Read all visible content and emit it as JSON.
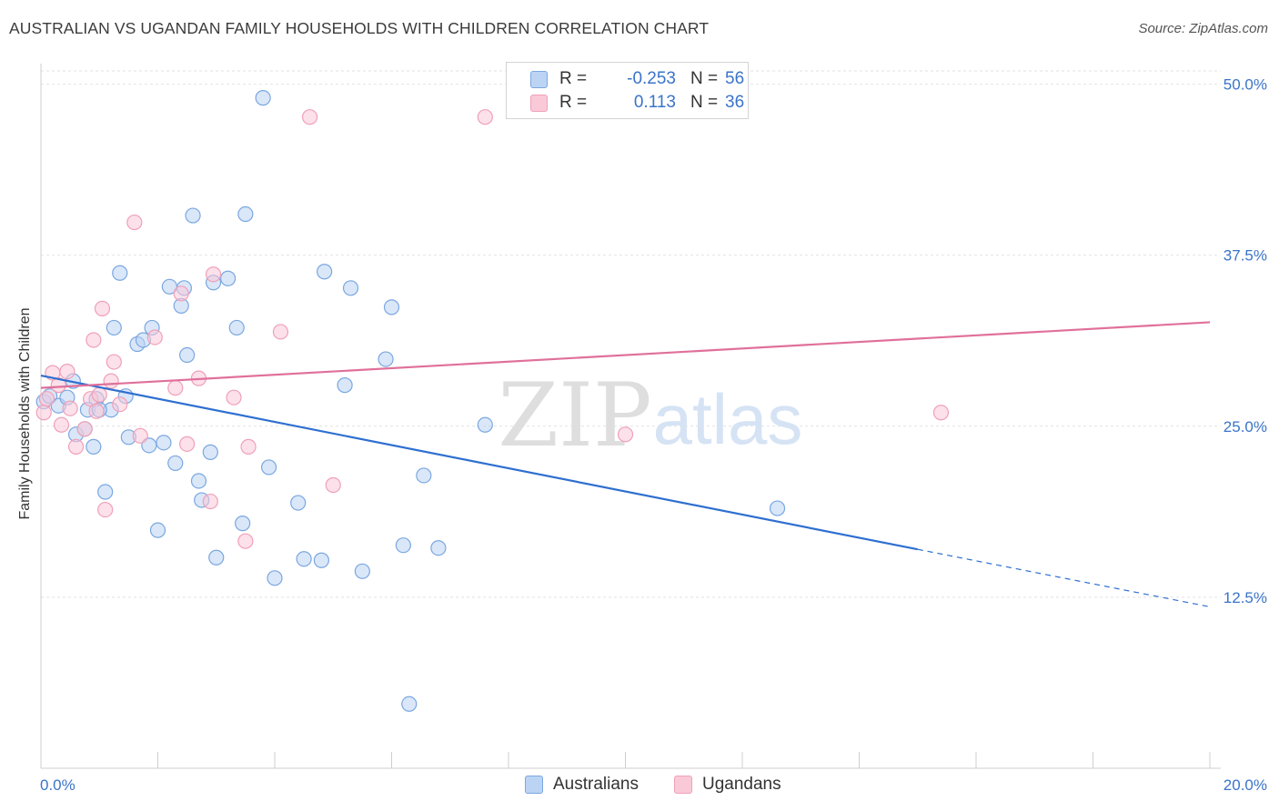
{
  "title": "AUSTRALIAN VS UGANDAN FAMILY HOUSEHOLDS WITH CHILDREN CORRELATION CHART",
  "source": "Source: ZipAtlas.com",
  "watermark": {
    "part1": "ZIP",
    "part2": "atlas"
  },
  "legend": {
    "r_label": "R =",
    "n_label": "N =",
    "rows": [
      {
        "series": "Australians",
        "r": "-0.253",
        "n": "56",
        "color": "#7aa7e0"
      },
      {
        "series": "Ugandans",
        "r": "0.113",
        "n": "36",
        "color": "#f0a0b8"
      }
    ]
  },
  "bottom_legend": [
    "Australians",
    "Ugandans"
  ],
  "chart_data": {
    "type": "scatter",
    "title": "AUSTRALIAN VS UGANDAN FAMILY HOUSEHOLDS WITH CHILDREN CORRELATION CHART",
    "xlabel": "",
    "ylabel": "Family Households with Children",
    "xlim": [
      0,
      20
    ],
    "ylim": [
      0,
      51.5
    ],
    "x_ticks_labels": [
      "0.0%",
      "20.0%"
    ],
    "y_ticks": [
      12.5,
      25.0,
      37.5,
      50.0
    ],
    "y_ticks_labels": [
      "12.5%",
      "25.0%",
      "37.5%",
      "50.0%"
    ],
    "grid": true,
    "series": [
      {
        "name": "Australians",
        "color": "#7aa7e0",
        "fill": "#bcd4f4",
        "trend": {
          "x0": 0.0,
          "y0": 28.7,
          "x1": 15.0,
          "y1": 16.0,
          "dash_to_x": 20.0,
          "dash_to_y": 11.8,
          "color": "#2e6fd0"
        },
        "points": [
          [
            0.05,
            26.8
          ],
          [
            0.15,
            27.2
          ],
          [
            0.3,
            26.5
          ],
          [
            0.45,
            27.1
          ],
          [
            0.55,
            28.3
          ],
          [
            0.6,
            24.4
          ],
          [
            0.75,
            24.8
          ],
          [
            0.8,
            26.2
          ],
          [
            0.9,
            23.5
          ],
          [
            0.95,
            27.0
          ],
          [
            1.1,
            20.2
          ],
          [
            1.2,
            26.2
          ],
          [
            1.25,
            32.2
          ],
          [
            1.35,
            36.2
          ],
          [
            1.45,
            27.2
          ],
          [
            1.5,
            24.2
          ],
          [
            1.65,
            31.0
          ],
          [
            1.75,
            31.3
          ],
          [
            1.85,
            23.6
          ],
          [
            1.9,
            32.2
          ],
          [
            2.0,
            17.4
          ],
          [
            2.1,
            23.8
          ],
          [
            2.2,
            35.2
          ],
          [
            2.3,
            22.3
          ],
          [
            2.4,
            33.8
          ],
          [
            2.45,
            35.1
          ],
          [
            2.5,
            30.2
          ],
          [
            2.6,
            40.4
          ],
          [
            2.7,
            21.0
          ],
          [
            2.75,
            19.6
          ],
          [
            2.9,
            23.1
          ],
          [
            2.95,
            35.5
          ],
          [
            3.0,
            15.4
          ],
          [
            3.2,
            35.8
          ],
          [
            3.35,
            32.2
          ],
          [
            3.45,
            17.9
          ],
          [
            3.5,
            40.5
          ],
          [
            3.8,
            49.0
          ],
          [
            3.9,
            22.0
          ],
          [
            4.0,
            13.9
          ],
          [
            4.4,
            19.4
          ],
          [
            4.5,
            15.3
          ],
          [
            4.8,
            15.2
          ],
          [
            4.85,
            36.3
          ],
          [
            5.2,
            28.0
          ],
          [
            5.3,
            35.1
          ],
          [
            5.5,
            14.4
          ],
          [
            5.9,
            29.9
          ],
          [
            6.0,
            33.7
          ],
          [
            6.2,
            16.3
          ],
          [
            6.3,
            4.7
          ],
          [
            6.55,
            21.4
          ],
          [
            6.8,
            16.1
          ],
          [
            7.6,
            25.1
          ],
          [
            12.6,
            19.0
          ],
          [
            1.0,
            26.2
          ]
        ]
      },
      {
        "name": "Ugandans",
        "color": "#f0a0b8",
        "fill": "#f9c9d8",
        "trend": {
          "x0": 0.0,
          "y0": 27.8,
          "x1": 20.0,
          "y1": 32.6,
          "color": "#e0709a"
        },
        "points": [
          [
            0.05,
            26.0
          ],
          [
            0.1,
            27.0
          ],
          [
            0.2,
            28.9
          ],
          [
            0.3,
            28.0
          ],
          [
            0.35,
            25.1
          ],
          [
            0.45,
            29.0
          ],
          [
            0.5,
            26.3
          ],
          [
            0.6,
            23.5
          ],
          [
            0.75,
            24.8
          ],
          [
            0.85,
            27.0
          ],
          [
            0.9,
            31.3
          ],
          [
            0.95,
            26.1
          ],
          [
            1.0,
            27.3
          ],
          [
            1.05,
            33.6
          ],
          [
            1.1,
            18.9
          ],
          [
            1.2,
            28.3
          ],
          [
            1.25,
            29.7
          ],
          [
            1.35,
            26.6
          ],
          [
            1.6,
            39.9
          ],
          [
            1.7,
            24.3
          ],
          [
            1.95,
            31.5
          ],
          [
            2.3,
            27.8
          ],
          [
            2.4,
            34.7
          ],
          [
            2.5,
            23.7
          ],
          [
            2.7,
            28.5
          ],
          [
            2.9,
            19.5
          ],
          [
            2.95,
            36.1
          ],
          [
            3.3,
            27.1
          ],
          [
            3.5,
            16.6
          ],
          [
            3.55,
            23.5
          ],
          [
            4.1,
            31.9
          ],
          [
            4.6,
            47.6
          ],
          [
            5.0,
            20.7
          ],
          [
            7.6,
            47.6
          ],
          [
            10.0,
            24.4
          ],
          [
            15.4,
            26.0
          ]
        ]
      }
    ]
  }
}
